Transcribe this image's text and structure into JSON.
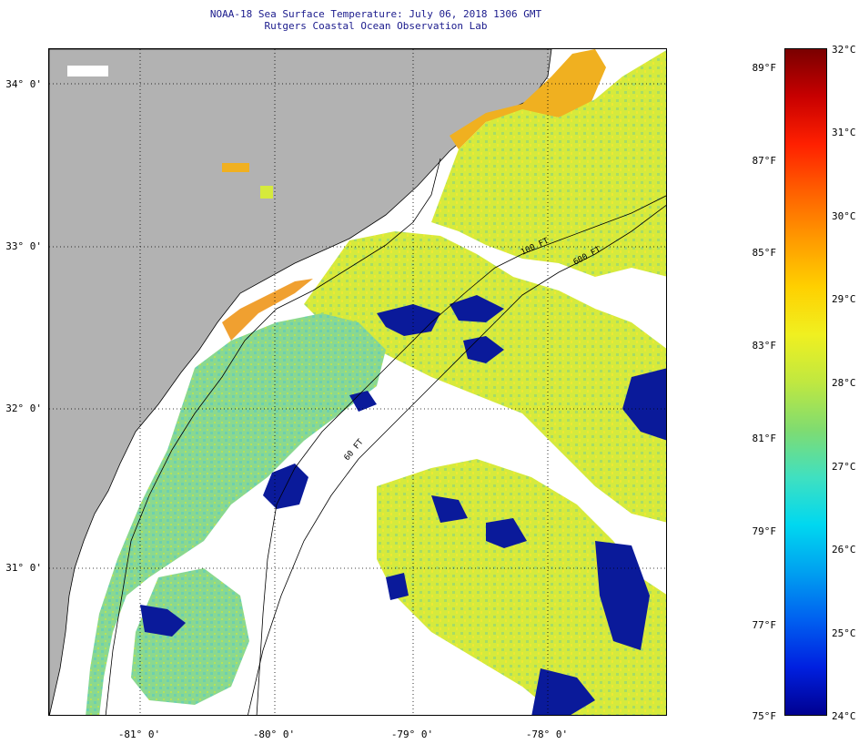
{
  "title_line1": "NOAA-18 Sea Surface Temperature:  July 06, 2018 1306 GMT",
  "title_line2": "Rutgers Coastal Ocean Observation Lab",
  "latitude_labels": [
    "34° 0'",
    "33° 0'",
    "32° 0'",
    "31° 0'"
  ],
  "longitude_labels": [
    "-81° 0'",
    "-80° 0'",
    "-79° 0'",
    "-78° 0'"
  ],
  "contour_labels": [
    "100 FT",
    "600 FT",
    "60 FT"
  ],
  "colorbar": {
    "fahrenheit_labels": [
      "89°F",
      "87°F",
      "85°F",
      "83°F",
      "81°F",
      "79°F",
      "77°F",
      "75°F"
    ],
    "celsius_labels": [
      "32°C",
      "31°C",
      "30°C",
      "29°C",
      "28°C",
      "27°C",
      "26°C",
      "25°C",
      "24°C"
    ]
  },
  "colors": {
    "land": "#b2b2b2",
    "cloud_mask": "#ffffff",
    "title_text": "#1a1a8c",
    "sst_dominant": "#c8e650"
  }
}
